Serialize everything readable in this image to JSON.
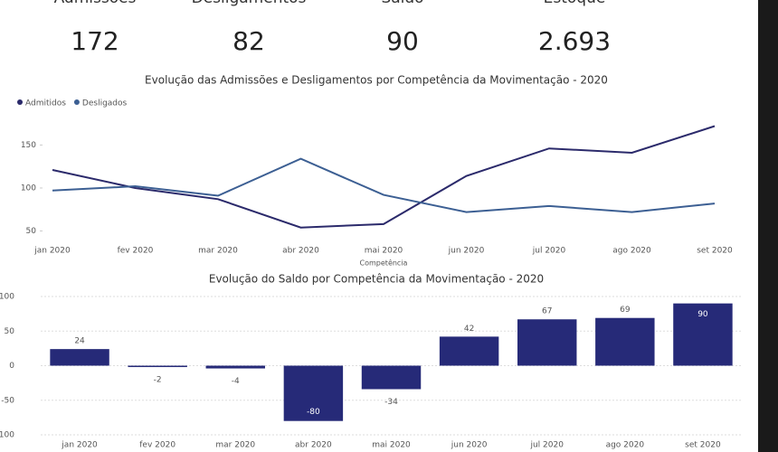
{
  "kpis": [
    {
      "label": "Admissões",
      "value": "172"
    },
    {
      "label": "Desligamentos",
      "value": "82"
    },
    {
      "label": "Saldo",
      "value": "90"
    },
    {
      "label": "Estoque",
      "value": "2.693"
    }
  ],
  "chart_data": [
    {
      "type": "line",
      "title": "Evolução das Admissões e Desligamentos por Competência da Movimentação - 2020",
      "x_label": "Competência",
      "categories": [
        "jan 2020",
        "fev 2020",
        "mar 2020",
        "abr 2020",
        "mai 2020",
        "jun 2020",
        "jul 2020",
        "ago 2020",
        "set 2020"
      ],
      "series": [
        {
          "name": "Admitidos",
          "color": "#2b2a6b",
          "values": [
            121,
            100,
            87,
            54,
            58,
            114,
            146,
            141,
            172
          ]
        },
        {
          "name": "Desligados",
          "color": "#3c5f93",
          "values": [
            97,
            102,
            91,
            134,
            92,
            72,
            79,
            72,
            82
          ]
        }
      ],
      "ylim": [
        40,
        182
      ],
      "yticks": [
        50,
        100,
        150
      ],
      "legend": "top-left"
    },
    {
      "type": "bar",
      "title": "Evolução do Saldo por Competência da Movimentação - 2020",
      "categories": [
        "jan 2020",
        "fev 2020",
        "mar 2020",
        "abr 2020",
        "mai 2020",
        "jun 2020",
        "jul 2020",
        "ago 2020",
        "set 2020"
      ],
      "values": [
        24,
        -2,
        -4,
        -80,
        -34,
        42,
        67,
        69,
        90
      ],
      "color": "#262a78",
      "ylim": [
        -100,
        100
      ],
      "yticks": [
        -100,
        -50,
        0,
        50,
        100
      ],
      "grid": true
    }
  ]
}
